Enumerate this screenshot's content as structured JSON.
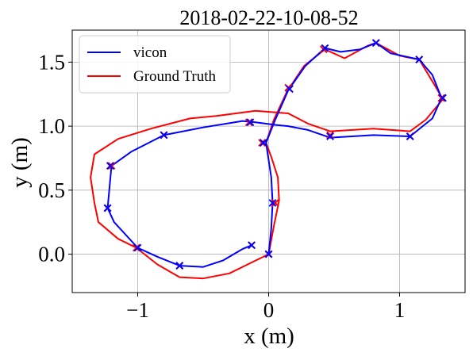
{
  "chart_data": {
    "type": "line",
    "title": "2018-02-22-10-08-52",
    "xlabel": "x (m)",
    "ylabel": "y (m)",
    "xlim": [
      -1.5,
      1.5
    ],
    "ylim": [
      -0.3,
      1.75
    ],
    "x_ticks": [
      -1,
      0,
      1
    ],
    "x_tick_labels": [
      "−1",
      "0",
      "1"
    ],
    "y_ticks": [
      0.0,
      0.5,
      1.0,
      1.5
    ],
    "y_tick_labels": [
      "0.0",
      "0.5",
      "1.0",
      "1.5"
    ],
    "grid": true,
    "legend_position": "top-left",
    "series": [
      {
        "name": "vicon",
        "color": "#0000ff",
        "points": [
          [
            0.0,
            0.0
          ],
          [
            0.02,
            0.2
          ],
          [
            0.03,
            0.4
          ],
          [
            0.02,
            0.6
          ],
          [
            -0.02,
            0.87
          ],
          [
            0.05,
            1.05
          ],
          [
            0.15,
            1.28
          ],
          [
            0.28,
            1.47
          ],
          [
            0.43,
            1.61
          ],
          [
            0.55,
            1.58
          ],
          [
            0.7,
            1.6
          ],
          [
            0.82,
            1.65
          ],
          [
            0.93,
            1.57
          ],
          [
            1.15,
            1.52
          ],
          [
            1.25,
            1.4
          ],
          [
            1.32,
            1.22
          ],
          [
            1.25,
            1.06
          ],
          [
            1.08,
            0.92
          ],
          [
            0.8,
            0.93
          ],
          [
            0.47,
            0.91
          ],
          [
            0.3,
            0.97
          ],
          [
            0.15,
            1.0
          ],
          [
            0.05,
            1.01
          ],
          [
            -0.1,
            1.03
          ],
          [
            -0.2,
            1.04
          ],
          [
            -0.5,
            0.99
          ],
          [
            -0.8,
            0.93
          ],
          [
            -1.05,
            0.8
          ],
          [
            -1.2,
            0.69
          ],
          [
            -1.23,
            0.36
          ],
          [
            -1.18,
            0.25
          ],
          [
            -1.0,
            0.05
          ],
          [
            -0.85,
            -0.02
          ],
          [
            -0.68,
            -0.09
          ],
          [
            -0.5,
            -0.1
          ],
          [
            -0.35,
            -0.05
          ],
          [
            -0.2,
            0.04
          ],
          [
            -0.13,
            0.07
          ]
        ]
      },
      {
        "name": "Ground Truth",
        "color": "#ff0000",
        "points": [
          [
            0.0,
            0.0
          ],
          [
            0.04,
            0.22
          ],
          [
            0.08,
            0.42
          ],
          [
            0.07,
            0.6
          ],
          [
            0.02,
            0.76
          ],
          [
            -0.02,
            0.87
          ],
          [
            0.04,
            1.05
          ],
          [
            0.14,
            1.27
          ],
          [
            0.27,
            1.47
          ],
          [
            0.43,
            1.6
          ],
          [
            0.58,
            1.53
          ],
          [
            0.76,
            1.63
          ],
          [
            0.82,
            1.65
          ],
          [
            1.0,
            1.55
          ],
          [
            1.15,
            1.52
          ],
          [
            1.28,
            1.3
          ],
          [
            1.33,
            1.21
          ],
          [
            1.2,
            1.05
          ],
          [
            1.08,
            0.96
          ],
          [
            0.8,
            0.98
          ],
          [
            0.47,
            0.96
          ],
          [
            0.3,
            1.02
          ],
          [
            0.15,
            1.1
          ],
          [
            -0.1,
            1.12
          ],
          [
            -0.4,
            1.08
          ],
          [
            -0.6,
            1.06
          ],
          [
            -0.9,
            0.98
          ],
          [
            -1.15,
            0.9
          ],
          [
            -1.33,
            0.78
          ],
          [
            -1.36,
            0.6
          ],
          [
            -1.33,
            0.4
          ],
          [
            -1.3,
            0.25
          ],
          [
            -1.15,
            0.12
          ],
          [
            -1.01,
            0.05
          ],
          [
            -0.85,
            -0.08
          ],
          [
            -0.68,
            -0.18
          ],
          [
            -0.5,
            -0.19
          ],
          [
            -0.3,
            -0.15
          ],
          [
            -0.1,
            -0.05
          ],
          [
            0.0,
            0.0
          ]
        ]
      }
    ],
    "markers": {
      "blue": [
        [
          -0.13,
          0.07
        ],
        [
          -0.68,
          -0.09
        ],
        [
          -1.0,
          0.05
        ],
        [
          -1.23,
          0.36
        ],
        [
          -1.21,
          0.69
        ],
        [
          -0.8,
          0.93
        ],
        [
          -0.14,
          1.03
        ],
        [
          0.47,
          0.92
        ],
        [
          1.08,
          0.92
        ],
        [
          1.33,
          1.22
        ],
        [
          1.15,
          1.52
        ],
        [
          0.82,
          1.65
        ],
        [
          0.43,
          1.61
        ],
        [
          0.16,
          1.29
        ],
        [
          -0.04,
          0.87
        ],
        [
          0.03,
          0.4
        ],
        [
          0.0,
          0.0
        ]
      ],
      "red": [
        [
          -0.13,
          0.07
        ],
        [
          -0.68,
          -0.09
        ],
        [
          -1.01,
          0.05
        ],
        [
          -1.23,
          0.36
        ],
        [
          -1.2,
          0.69
        ],
        [
          -0.8,
          0.93
        ],
        [
          -0.15,
          1.03
        ],
        [
          0.47,
          0.93
        ],
        [
          1.08,
          0.92
        ],
        [
          1.32,
          1.22
        ],
        [
          1.15,
          1.52
        ],
        [
          0.82,
          1.65
        ],
        [
          0.42,
          1.6
        ],
        [
          0.15,
          1.3
        ],
        [
          -0.05,
          0.87
        ],
        [
          0.05,
          0.4
        ],
        [
          0.0,
          0.0
        ]
      ]
    }
  }
}
